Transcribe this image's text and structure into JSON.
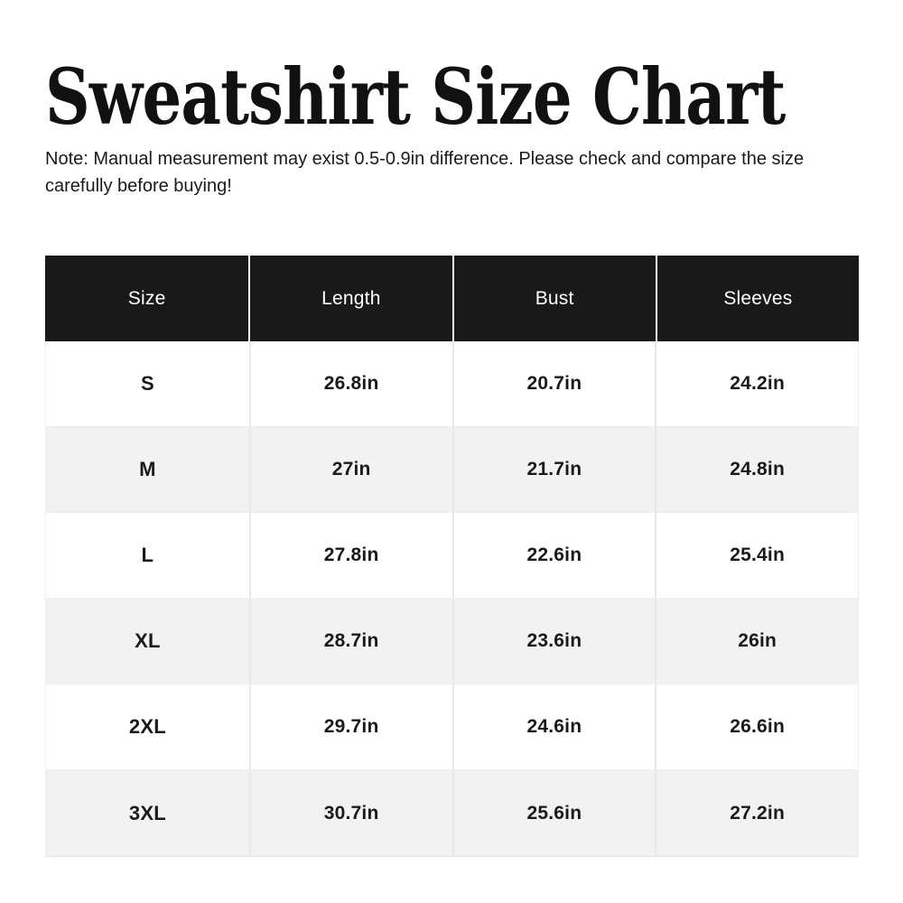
{
  "page": {
    "title": "Sweatshirt Size Chart",
    "note": {
      "line1": "Note: Manual measurement may exist 0.5-0.9in difference. Please check and compare the size",
      "line2": "carefully before buying!"
    }
  },
  "table": {
    "headers": [
      "Size",
      "Length",
      "Bust",
      "Sleeves"
    ],
    "rows": [
      {
        "cells": [
          "S",
          "26.8in",
          "20.7in",
          "24.2in"
        ]
      },
      {
        "cells": [
          "M",
          "27in",
          "21.7in",
          "24.8in"
        ]
      },
      {
        "cells": [
          "L",
          "27.8in",
          "22.6in",
          "25.4in"
        ]
      },
      {
        "cells": [
          "XL",
          "28.7in",
          "23.6in",
          "26in"
        ]
      },
      {
        "cells": [
          "2XL",
          "29.7in",
          "24.6in",
          "26.6in"
        ]
      },
      {
        "cells": [
          "3XL",
          "30.7in",
          "25.6in",
          "27.2in"
        ]
      }
    ]
  },
  "theme": {
    "header_bg": "#191919",
    "header_text": "#ffffff",
    "text": "#1a1a1a",
    "row_bg": "#ffffff",
    "alt_row_bg": "#f2f2f2",
    "divider": "#e8e8e8",
    "header_divider": "#ffffff",
    "page_bg": "#ffffff"
  }
}
